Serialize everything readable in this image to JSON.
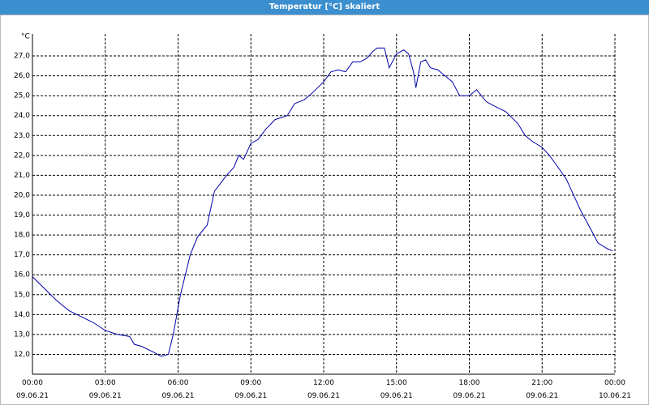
{
  "chart_data": {
    "type": "line",
    "title": "Temperatur [°C] skaliert",
    "y_label": "°C",
    "series": [
      {
        "color": "#0000aa",
        "x": [
          0,
          0.5,
          1,
          1.5,
          2,
          2.5,
          3,
          3.5,
          4,
          4.2,
          4.5,
          5,
          5.3,
          5.6,
          5.8,
          6.1,
          6.5,
          6.8,
          7.2,
          7.5,
          8,
          8.3,
          8.5,
          8.7,
          9,
          9.3,
          9.6,
          10,
          10.5,
          10.8,
          11.2,
          11.5,
          12,
          12.3,
          12.6,
          12.9,
          13.2,
          13.5,
          13.8,
          14,
          14.2,
          14.5,
          14.7,
          15,
          15.3,
          15.5,
          15.7,
          15.8,
          16,
          16.2,
          16.4,
          16.7,
          17,
          17.3,
          17.6,
          18,
          18.3,
          18.7,
          19,
          19.5,
          20,
          20.3,
          20.6,
          21,
          21.3,
          21.6,
          22,
          22.3,
          22.6,
          23,
          23.3,
          23.7,
          23.9
        ],
        "values": [
          15.9,
          15.3,
          14.7,
          14.2,
          13.9,
          13.6,
          13.2,
          13.0,
          12.9,
          12.5,
          12.4,
          12.1,
          11.9,
          12.0,
          13.0,
          15.0,
          17.0,
          17.9,
          18.5,
          20.2,
          21.0,
          21.4,
          22.0,
          21.8,
          22.6,
          22.8,
          23.3,
          23.8,
          24.0,
          24.6,
          24.8,
          25.1,
          25.7,
          26.2,
          26.3,
          26.2,
          26.7,
          26.7,
          26.9,
          27.2,
          27.4,
          27.4,
          26.4,
          27.1,
          27.3,
          27.1,
          26.2,
          25.4,
          26.7,
          26.8,
          26.4,
          26.3,
          26.0,
          25.7,
          25.0,
          25.0,
          25.3,
          24.7,
          24.5,
          24.2,
          23.6,
          23.0,
          22.7,
          22.4,
          22.0,
          21.5,
          20.8,
          20.0,
          19.2,
          18.3,
          17.6,
          17.3,
          17.2
        ]
      }
    ],
    "xlim": [
      0,
      24
    ],
    "xticks": [
      {
        "value": 0,
        "label": "00:00\n09.06.21"
      },
      {
        "value": 3,
        "label": "03:00\n09.06.21"
      },
      {
        "value": 6,
        "label": "06:00\n09.06.21"
      },
      {
        "value": 9,
        "label": "09:00\n09.06.21"
      },
      {
        "value": 12,
        "label": "12:00\n09.06.21"
      },
      {
        "value": 15,
        "label": "15:00\n09.06.21"
      },
      {
        "value": 18,
        "label": "18:00\n09.06.21"
      },
      {
        "value": 21,
        "label": "21:00\n09.06.21"
      },
      {
        "value": 24,
        "label": "00:00\n10.06.21"
      }
    ],
    "ylim": [
      11.0,
      28.1
    ],
    "yticks": [
      {
        "value": 12,
        "label": "12,0"
      },
      {
        "value": 13,
        "label": "13,0"
      },
      {
        "value": 14,
        "label": "14,0"
      },
      {
        "value": 15,
        "label": "15,0"
      },
      {
        "value": 16,
        "label": "16,0"
      },
      {
        "value": 17,
        "label": "17,0"
      },
      {
        "value": 18,
        "label": "18,0"
      },
      {
        "value": 19,
        "label": "19,0"
      },
      {
        "value": 20,
        "label": "20,0"
      },
      {
        "value": 21,
        "label": "21,0"
      },
      {
        "value": 22,
        "label": "22,0"
      },
      {
        "value": 23,
        "label": "23,0"
      },
      {
        "value": 24,
        "label": "24,0"
      },
      {
        "value": 25,
        "label": "25,0"
      },
      {
        "value": 26,
        "label": "26,0"
      },
      {
        "value": 27,
        "label": "27,0"
      }
    ],
    "grid": true
  }
}
